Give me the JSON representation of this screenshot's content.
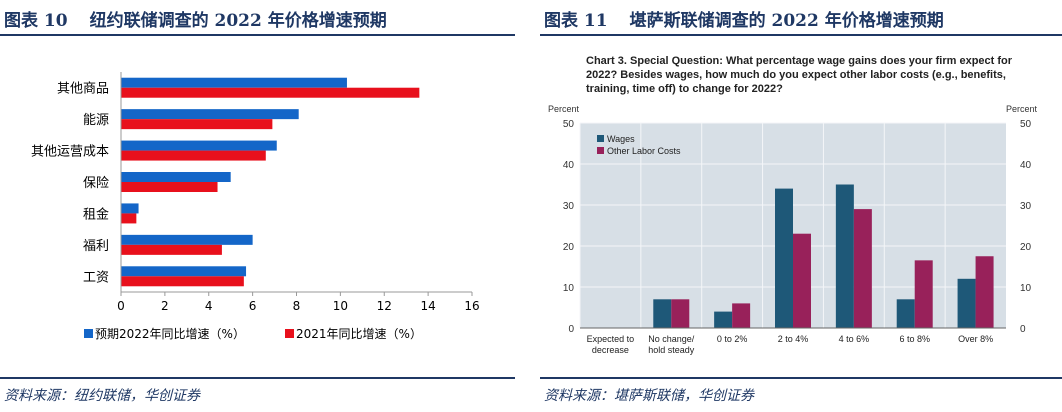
{
  "left_panel": {
    "figure_number": "图表 10",
    "figure_title": "纽约联储调查的 2022 年价格增速预期",
    "source": "资料来源：纽约联储，华创证券"
  },
  "right_panel": {
    "figure_number": "图表 11",
    "figure_title": "堪萨斯联储调查的 2022 年价格增速预期",
    "source": "资料来源：堪萨斯联储，华创证券"
  },
  "chart_data": [
    {
      "type": "bar",
      "orientation": "horizontal",
      "categories": [
        "其他商品",
        "能源",
        "其他运营成本",
        "保险",
        "租金",
        "福利",
        "工资"
      ],
      "series": [
        {
          "name": "预期2022年同比增速（%）",
          "color": "#1466c8",
          "values": [
            10.3,
            8.1,
            7.1,
            5.0,
            0.8,
            6.0,
            5.7
          ]
        },
        {
          "name": "2021年同比增速（%）",
          "color": "#e8101c",
          "values": [
            13.6,
            6.9,
            6.6,
            4.4,
            0.7,
            4.6,
            5.6
          ]
        }
      ],
      "xlim": [
        0,
        16
      ],
      "xticks": [
        0,
        2,
        4,
        6,
        8,
        10,
        12,
        14,
        16
      ],
      "legend_position": "bottom",
      "grid": false
    },
    {
      "type": "bar",
      "orientation": "vertical",
      "title": "Chart 3. Special Question: What percentage wage gains does your firm expect for 2022? Besides wages, how much do you expect other labor costs (e.g., benefits, training, time off) to change for 2022?",
      "title_lines": [
        "Chart 3. Special Question: What percentage wage gains does your firm expect for",
        "2022? Besides wages, how much do you expect other labor costs (e.g., benefits,",
        "training, time off) to change for 2022?"
      ],
      "categories": [
        [
          "Expected to",
          "decrease"
        ],
        [
          "No change/",
          "hold steady"
        ],
        [
          "0 to 2%"
        ],
        [
          "2 to 4%"
        ],
        [
          "4 to 6%"
        ],
        [
          "6 to 8%"
        ],
        [
          "Over 8%"
        ]
      ],
      "series": [
        {
          "name": "Wages",
          "color": "#1e5878",
          "values": [
            0,
            7,
            4,
            34,
            35,
            7,
            12
          ]
        },
        {
          "name": "Other Labor Costs",
          "color": "#98215a",
          "values": [
            0,
            7,
            6,
            23,
            29,
            16.5,
            17.5
          ]
        }
      ],
      "ylabel_left": "Percent",
      "ylabel_right": "Percent",
      "ylim": [
        0,
        50
      ],
      "yticks": [
        0,
        10,
        20,
        30,
        40,
        50
      ],
      "grid": true,
      "legend_position": "top-left",
      "background": "#d7dfe6"
    }
  ]
}
